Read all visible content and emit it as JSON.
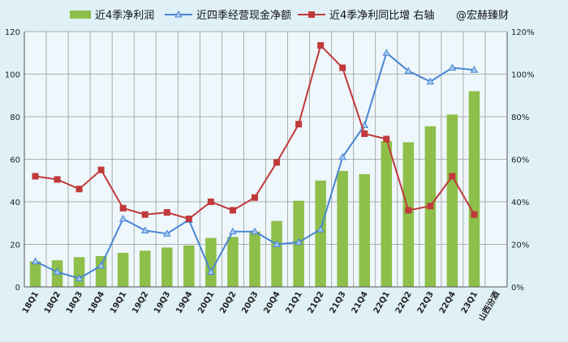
{
  "chart_data": {
    "type": "bar",
    "categories": [
      "18Q1",
      "18Q2",
      "18Q3",
      "18Q4",
      "19Q1",
      "19Q2",
      "19Q3",
      "19Q4",
      "20Q1",
      "20Q2",
      "20Q3",
      "20Q4",
      "21Q1",
      "21Q2",
      "21Q3",
      "21Q4",
      "22Q1",
      "22Q2",
      "22Q3",
      "22Q4",
      "23Q1"
    ],
    "xaxis_end_label": "山西汾酒",
    "ylim": [
      0,
      120
    ],
    "y2lim": [
      0,
      1.2
    ],
    "yticks": [
      "0",
      "20",
      "40",
      "60",
      "80",
      "100",
      "120"
    ],
    "y2ticks": [
      "0%",
      "20%",
      "40%",
      "60%",
      "80%",
      "100%",
      "120%"
    ],
    "grid": true,
    "legend_position": "top",
    "series": [
      {
        "name": "近4季净利润",
        "type": "bar",
        "axis": "left",
        "color": "#8dbf4a",
        "values": [
          12,
          12.5,
          14,
          14.5,
          16,
          17,
          18.5,
          19.5,
          23,
          23.5,
          26,
          31,
          40.5,
          50,
          54.5,
          53,
          68.5,
          68,
          75.5,
          81,
          92
        ]
      },
      {
        "name": "近四季经营现金净额",
        "type": "line",
        "axis": "left",
        "color": "#4a86d4",
        "marker": "triangle",
        "values": [
          12,
          7,
          4,
          10,
          32,
          26.5,
          25,
          31.5,
          7,
          26,
          26,
          20,
          21,
          27,
          61,
          76,
          110,
          101.5,
          96.5,
          103,
          102
        ]
      },
      {
        "name": "近4季净利同比增 右轴",
        "type": "line",
        "axis": "right",
        "color": "#c0393b",
        "marker": "square",
        "values": [
          0.52,
          0.505,
          0.46,
          0.55,
          0.37,
          0.34,
          0.35,
          0.32,
          0.4,
          0.36,
          0.42,
          0.585,
          0.765,
          1.135,
          1.03,
          0.72,
          0.695,
          0.36,
          0.38,
          0.52,
          0.34
        ]
      }
    ],
    "annotation": "@宏赫臻财"
  }
}
